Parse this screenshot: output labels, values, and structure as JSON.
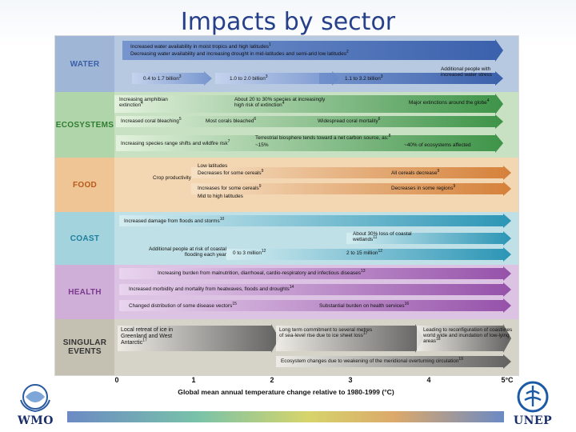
{
  "title": "Impacts by sector",
  "sectors": [
    {
      "key": "water",
      "label": "WATER",
      "bg": "#b7c9e1",
      "label_bg": "#9fb6d6",
      "color": "#3a5fa8"
    },
    {
      "key": "ecosystems",
      "label": "ECOSYSTEMS",
      "bg": "#c8e1c3",
      "label_bg": "#b1d5aa",
      "color": "#2e7d32"
    },
    {
      "key": "food",
      "label": "FOOD",
      "bg": "#f3d6b2",
      "label_bg": "#efc596",
      "color": "#b65a1a"
    },
    {
      "key": "coast",
      "label": "COAST",
      "bg": "#bfe0e6",
      "label_bg": "#a3d3dc",
      "color": "#1d7fa0"
    },
    {
      "key": "health",
      "label": "HEALTH",
      "bg": "#dcc3e3",
      "label_bg": "#cfaed8",
      "color": "#7b3a8e"
    },
    {
      "key": "singular",
      "label": "SINGULAR EVENTS",
      "bg": "#d6d3c9",
      "label_bg": "#c4c0b2",
      "color": "#333333"
    }
  ],
  "items": {
    "w1": {
      "text": "Increased water availability in moist tropics and high latitudes",
      "ref": "1"
    },
    "w2": {
      "text": "Decreasing water availability and increasing drought in mid-latitudes and semi-arid low latitudes",
      "ref": "2"
    },
    "w3": {
      "text": "0.4 to 1.7 billion",
      "ref": "3"
    },
    "w4": {
      "text": "1.0 to 2.0 billion",
      "ref": "3"
    },
    "w5": {
      "text": "1.1 to 3.2 billion",
      "ref": "3"
    },
    "w6": {
      "text": "Additional people with increased water stress",
      "ref": ""
    },
    "e1": {
      "text": "Increasing amphibian extinction",
      "ref": "4"
    },
    "e2": {
      "text": "About 20 to 30% species at increasingly high risk of extinction",
      "ref": "4"
    },
    "e3": {
      "text": "Major extinctions around the globe",
      "ref": "4"
    },
    "e4": {
      "text": "Increased coral bleaching",
      "ref": "5"
    },
    "e5": {
      "text": "Most corals bleached",
      "ref": "6"
    },
    "e6": {
      "text": "Widespread coral mortality",
      "ref": "6"
    },
    "e7": {
      "text": "Increasing species range shifts and wildfire risk",
      "ref": "7"
    },
    "e8": {
      "text": "Terrestrial biosphere tends toward a net carbon source, as:",
      "ref": "8"
    },
    "e9": {
      "text": "~15%",
      "ref": ""
    },
    "e10": {
      "text": "~40% of ecosystems affected",
      "ref": ""
    },
    "f0": {
      "text": "Crop productivity",
      "ref": ""
    },
    "f1": {
      "text": "Low latitudes",
      "ref": ""
    },
    "f2": {
      "text": "Decreases for some cereals",
      "ref": "9"
    },
    "f3": {
      "text": "All cereals decrease",
      "ref": "9"
    },
    "f4": {
      "text": "Increases for some cereals",
      "ref": "9"
    },
    "f5": {
      "text": "Decreases in some regions",
      "ref": "9"
    },
    "f6": {
      "text": "Mid to high latitudes",
      "ref": ""
    },
    "c1": {
      "text": "Increased damage from floods and storms",
      "ref": "10"
    },
    "c2": {
      "text": "About 30% loss of coastal wetlands",
      "ref": "11"
    },
    "c3": {
      "text": "Additional people at risk of coastal flooding each year",
      "ref": ""
    },
    "c4": {
      "text": "0 to 3 million",
      "ref": "12"
    },
    "c5": {
      "text": "2 to 15 million",
      "ref": "12"
    },
    "h1": {
      "text": "Increasing burden from malnutrition, diarrhoeal, cardio-respiratory and infectious diseases",
      "ref": "13"
    },
    "h2": {
      "text": "Increased morbidity and mortality from heatwaves, floods and droughts",
      "ref": "14"
    },
    "h3": {
      "text": "Changed distribution of some disease vectors",
      "ref": "15"
    },
    "h4": {
      "text": "Substantial burden on health services",
      "ref": "16"
    },
    "s1": {
      "text": "Local retreat of ice in Greenland and West Antarctic",
      "ref": "17"
    },
    "s2": {
      "text": "Long term commitment to several metres of sea-level rise due to ice sheet loss",
      "ref": "17"
    },
    "s3": {
      "text": "Leading to reconfiguration of coastlines world wide and inundation of low-lying areas",
      "ref": "18"
    },
    "s4": {
      "text": "Ecosystem changes due to weakening of the meridional overturning circulation",
      "ref": "19"
    }
  },
  "axis": {
    "ticks": [
      "0",
      "1",
      "2",
      "3",
      "4",
      "5°C"
    ],
    "label": "Global mean annual temperature change relative to 1980-1999 (°C)"
  },
  "logos": {
    "left": "WMO",
    "right": "UNEP"
  }
}
